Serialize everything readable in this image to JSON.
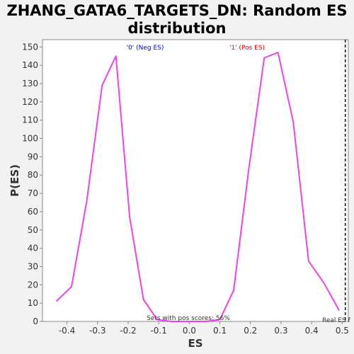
{
  "chart_data": {
    "type": "line",
    "title_line1": "ZHANG_GATA6_TARGETS_DN: Random ES",
    "title_line2": "distribution",
    "xlabel": "ES",
    "ylabel": "P(ES)",
    "xlim": [
      -0.48,
      0.52
    ],
    "ylim": [
      0,
      154
    ],
    "xticks": [
      -0.4,
      -0.3,
      -0.2,
      -0.1,
      0.0,
      0.1,
      0.2,
      0.3,
      0.4,
      0.5
    ],
    "xtick_labels": [
      "-0.4",
      "-0.3",
      "-0.2",
      "-0.1",
      "0.0",
      "0.1",
      "0.2",
      "0.3",
      "0.4",
      "0.5"
    ],
    "yticks": [
      0,
      10,
      20,
      30,
      40,
      50,
      60,
      70,
      80,
      90,
      100,
      110,
      120,
      130,
      140,
      150
    ],
    "ytick_labels": [
      "0",
      "10",
      "20",
      "30",
      "40",
      "50",
      "60",
      "70",
      "80",
      "90",
      "100",
      "110",
      "120",
      "130",
      "140",
      "150"
    ],
    "grid": false,
    "line_color": "#ee44ee",
    "series": [
      {
        "x": [
          -0.435,
          -0.385,
          -0.335,
          -0.285,
          -0.24,
          -0.195,
          -0.15,
          -0.105,
          -0.06,
          -0.015,
          0.03,
          0.055,
          0.1,
          0.145,
          0.195,
          0.245,
          0.29,
          0.34,
          0.39,
          0.44,
          0.49
        ],
        "y": [
          11,
          19,
          66,
          129,
          145,
          57,
          12,
          1,
          0,
          0,
          0,
          0,
          1,
          17,
          84,
          144,
          147,
          109,
          33,
          21,
          6
        ]
      }
    ],
    "annotations": {
      "neg_label": "'0' (Neg ES)",
      "neg_color": "#0000ee",
      "pos_label": "'1' (Pos ES)",
      "pos_color": "#ee0000",
      "pos_scores_text": "Sets with pos scores: 56%",
      "real_es_text": "Real ES f",
      "real_es_x": 0.51
    }
  }
}
